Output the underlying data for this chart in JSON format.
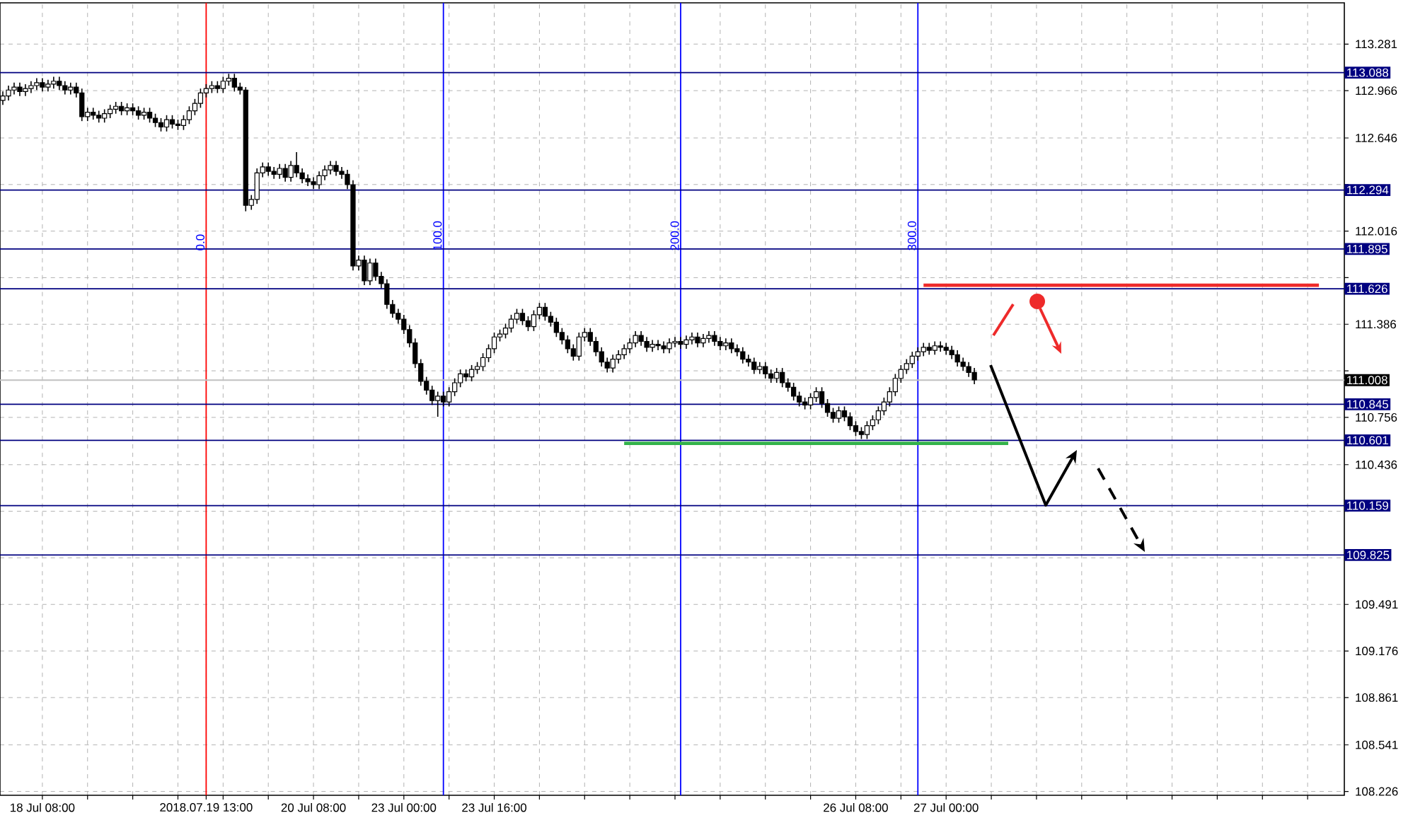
{
  "chart_data": {
    "type": "candlestick",
    "color": "#000000",
    "grid": true,
    "categories": [
      null,
      null,
      null,
      null,
      null,
      null,
      null,
      "18 Jul 08:00",
      null,
      null,
      null,
      null,
      null,
      null,
      null,
      null,
      null,
      null,
      null,
      null,
      null,
      null,
      null,
      null,
      null,
      null,
      null,
      null,
      null,
      null,
      null,
      null,
      null,
      null,
      null,
      null,
      "2018.07.19 13:00",
      null,
      null,
      null,
      null,
      null,
      null,
      null,
      null,
      null,
      null,
      null,
      null,
      null,
      null,
      null,
      null,
      null,
      null,
      "20 Jul 08:00",
      null,
      null,
      null,
      null,
      null,
      null,
      null,
      null,
      null,
      null,
      null,
      null,
      null,
      null,
      null,
      "23 Jul 00:00",
      null,
      null,
      null,
      null,
      null,
      null,
      null,
      null,
      null,
      null,
      null,
      null,
      null,
      null,
      null,
      "23 Jul 16:00",
      null,
      null,
      null,
      null,
      null,
      null,
      null,
      null,
      null,
      null,
      null,
      null,
      null,
      null,
      null,
      null,
      null,
      null,
      null,
      null,
      null,
      null,
      null,
      null,
      null,
      null,
      null,
      null,
      null,
      null,
      null,
      null,
      null,
      null,
      null,
      null,
      null,
      null,
      null,
      null,
      null,
      null,
      null,
      null,
      null,
      null,
      null,
      null,
      null,
      null,
      null,
      null,
      null,
      null,
      null,
      null,
      null,
      null,
      null,
      null,
      null,
      null,
      null,
      "26 Jul 08:00",
      null,
      null,
      null,
      null,
      null,
      null,
      null,
      null,
      null,
      null,
      null,
      null,
      null,
      null,
      null,
      "27 Jul 00:00",
      null,
      null,
      null,
      null,
      null,
      null,
      null,
      null,
      null,
      null,
      null,
      null,
      null,
      null,
      null,
      null,
      null,
      null,
      null,
      null,
      null,
      null,
      null,
      null,
      null,
      null,
      null,
      null,
      null,
      null,
      null,
      null,
      null,
      null,
      null,
      null,
      null,
      null,
      null,
      null,
      null,
      null,
      null,
      null,
      null,
      null,
      null,
      null,
      null,
      null,
      null,
      null,
      null,
      null,
      null,
      null,
      null,
      null,
      null,
      null,
      null,
      null,
      null,
      null,
      null,
      null,
      null,
      null,
      null,
      null
    ],
    "ohlc": [
      [
        112.9,
        112.96,
        112.87,
        112.93
      ],
      [
        112.93,
        113.0,
        112.9,
        112.97
      ],
      [
        112.97,
        113.02,
        112.94,
        112.99
      ],
      [
        112.99,
        113.02,
        112.93,
        112.96
      ],
      [
        112.96,
        113.01,
        112.93,
        112.98
      ],
      [
        112.98,
        113.03,
        112.95,
        113.0
      ],
      [
        113.0,
        113.05,
        112.97,
        113.02
      ],
      [
        113.02,
        113.05,
        112.96,
        112.99
      ],
      [
        112.99,
        113.04,
        112.96,
        113.01
      ],
      [
        113.01,
        113.06,
        112.98,
        113.03
      ],
      [
        113.03,
        113.06,
        112.97,
        113.0
      ],
      [
        113.0,
        113.03,
        112.94,
        112.97
      ],
      [
        112.97,
        113.02,
        112.94,
        112.99
      ],
      [
        112.99,
        113.02,
        112.92,
        112.95
      ],
      [
        112.95,
        112.98,
        112.76,
        112.79
      ],
      [
        112.79,
        112.85,
        112.76,
        112.82
      ],
      [
        112.82,
        112.85,
        112.77,
        112.8
      ],
      [
        112.8,
        112.83,
        112.75,
        112.78
      ],
      [
        112.78,
        112.84,
        112.75,
        112.81
      ],
      [
        112.81,
        112.87,
        112.78,
        112.84
      ],
      [
        112.84,
        112.89,
        112.81,
        112.86
      ],
      [
        112.86,
        112.89,
        112.8,
        112.83
      ],
      [
        112.83,
        112.88,
        112.8,
        112.85
      ],
      [
        112.85,
        112.88,
        112.8,
        112.83
      ],
      [
        112.83,
        112.86,
        112.77,
        112.8
      ],
      [
        112.8,
        112.85,
        112.77,
        112.82
      ],
      [
        112.82,
        112.85,
        112.75,
        112.78
      ],
      [
        112.78,
        112.81,
        112.72,
        112.75
      ],
      [
        112.75,
        112.78,
        112.69,
        112.72
      ],
      [
        112.72,
        112.8,
        112.69,
        112.77
      ],
      [
        112.77,
        112.8,
        112.71,
        112.74
      ],
      [
        112.74,
        112.77,
        112.7,
        112.73
      ],
      [
        112.73,
        112.8,
        112.7,
        112.77
      ],
      [
        112.77,
        112.86,
        112.74,
        112.83
      ],
      [
        112.83,
        112.91,
        112.8,
        112.88
      ],
      [
        112.88,
        112.98,
        112.85,
        112.95
      ],
      [
        112.95,
        113.01,
        112.92,
        112.98
      ],
      [
        112.98,
        113.03,
        112.95,
        113.0
      ],
      [
        113.0,
        113.03,
        112.95,
        112.98
      ],
      [
        112.98,
        113.06,
        112.95,
        113.03
      ],
      [
        113.03,
        113.08,
        113.0,
        113.05
      ],
      [
        113.05,
        113.08,
        112.96,
        112.99
      ],
      [
        112.99,
        113.02,
        112.94,
        112.97
      ],
      [
        112.97,
        112.99,
        112.15,
        112.19
      ],
      [
        112.19,
        112.26,
        112.16,
        112.23
      ],
      [
        112.23,
        112.44,
        112.2,
        112.41
      ],
      [
        112.41,
        112.48,
        112.38,
        112.45
      ],
      [
        112.45,
        112.48,
        112.39,
        112.42
      ],
      [
        112.42,
        112.45,
        112.37,
        112.4
      ],
      [
        112.4,
        112.47,
        112.37,
        112.44
      ],
      [
        112.44,
        112.47,
        112.35,
        112.38
      ],
      [
        112.38,
        112.49,
        112.35,
        112.46
      ],
      [
        112.46,
        112.55,
        112.38,
        112.41
      ],
      [
        112.41,
        112.44,
        112.34,
        112.37
      ],
      [
        112.37,
        112.4,
        112.32,
        112.35
      ],
      [
        112.35,
        112.38,
        112.3,
        112.33
      ],
      [
        112.33,
        112.42,
        112.3,
        112.39
      ],
      [
        112.39,
        112.46,
        112.36,
        112.43
      ],
      [
        112.43,
        112.49,
        112.4,
        112.46
      ],
      [
        112.46,
        112.49,
        112.39,
        112.42
      ],
      [
        112.42,
        112.45,
        112.37,
        112.4
      ],
      [
        112.4,
        112.43,
        112.3,
        112.33
      ],
      [
        112.33,
        112.36,
        111.75,
        111.78
      ],
      [
        111.78,
        111.85,
        111.75,
        111.82
      ],
      [
        111.82,
        111.85,
        111.65,
        111.68
      ],
      [
        111.68,
        111.83,
        111.65,
        111.8
      ],
      [
        111.8,
        111.83,
        111.68,
        111.71
      ],
      [
        111.71,
        111.74,
        111.63,
        111.66
      ],
      [
        111.66,
        111.69,
        111.49,
        111.52
      ],
      [
        111.52,
        111.55,
        111.43,
        111.46
      ],
      [
        111.46,
        111.49,
        111.39,
        111.42
      ],
      [
        111.42,
        111.45,
        111.32,
        111.35
      ],
      [
        111.35,
        111.38,
        111.23,
        111.26
      ],
      [
        111.26,
        111.29,
        111.09,
        111.12
      ],
      [
        111.12,
        111.15,
        110.97,
        111.0
      ],
      [
        111.0,
        111.03,
        110.91,
        110.94
      ],
      [
        110.94,
        110.97,
        110.84,
        110.87
      ],
      [
        110.87,
        110.93,
        110.76,
        110.9
      ],
      [
        110.9,
        110.93,
        110.83,
        110.86
      ],
      [
        110.86,
        110.96,
        110.83,
        110.93
      ],
      [
        110.93,
        111.02,
        110.9,
        110.99
      ],
      [
        110.99,
        111.08,
        110.96,
        111.05
      ],
      [
        111.05,
        111.08,
        111.0,
        111.03
      ],
      [
        111.03,
        111.11,
        111.0,
        111.08
      ],
      [
        111.08,
        111.13,
        111.05,
        111.1
      ],
      [
        111.1,
        111.19,
        111.07,
        111.16
      ],
      [
        111.16,
        111.25,
        111.13,
        111.22
      ],
      [
        111.22,
        111.33,
        111.19,
        111.3
      ],
      [
        111.3,
        111.35,
        111.27,
        111.32
      ],
      [
        111.32,
        111.39,
        111.29,
        111.36
      ],
      [
        111.36,
        111.45,
        111.33,
        111.42
      ],
      [
        111.42,
        111.49,
        111.39,
        111.46
      ],
      [
        111.46,
        111.49,
        111.38,
        111.41
      ],
      [
        111.41,
        111.44,
        111.34,
        111.37
      ],
      [
        111.37,
        111.48,
        111.34,
        111.45
      ],
      [
        111.45,
        111.53,
        111.42,
        111.5
      ],
      [
        111.5,
        111.53,
        111.41,
        111.44
      ],
      [
        111.44,
        111.47,
        111.37,
        111.4
      ],
      [
        111.4,
        111.43,
        111.3,
        111.33
      ],
      [
        111.33,
        111.36,
        111.25,
        111.28
      ],
      [
        111.28,
        111.31,
        111.19,
        111.22
      ],
      [
        111.22,
        111.25,
        111.14,
        111.17
      ],
      [
        111.17,
        111.33,
        111.14,
        111.3
      ],
      [
        111.3,
        111.36,
        111.27,
        111.33
      ],
      [
        111.33,
        111.36,
        111.24,
        111.27
      ],
      [
        111.27,
        111.3,
        111.17,
        111.2
      ],
      [
        111.2,
        111.23,
        111.1,
        111.13
      ],
      [
        111.13,
        111.16,
        111.06,
        111.09
      ],
      [
        111.09,
        111.18,
        111.06,
        111.15
      ],
      [
        111.15,
        111.21,
        111.12,
        111.18
      ],
      [
        111.18,
        111.25,
        111.15,
        111.22
      ],
      [
        111.22,
        111.29,
        111.19,
        111.26
      ],
      [
        111.26,
        111.34,
        111.23,
        111.31
      ],
      [
        111.31,
        111.34,
        111.24,
        111.27
      ],
      [
        111.27,
        111.3,
        111.2,
        111.23
      ],
      [
        111.23,
        111.28,
        111.2,
        111.25
      ],
      [
        111.25,
        111.28,
        111.21,
        111.24
      ],
      [
        111.24,
        111.27,
        111.19,
        111.22
      ],
      [
        111.22,
        111.29,
        111.19,
        111.26
      ],
      [
        111.26,
        111.3,
        111.23,
        111.27
      ],
      [
        111.27,
        111.3,
        111.22,
        111.25
      ],
      [
        111.25,
        111.31,
        111.22,
        111.28
      ],
      [
        111.28,
        111.33,
        111.25,
        111.3
      ],
      [
        111.3,
        111.33,
        111.23,
        111.26
      ],
      [
        111.26,
        111.32,
        111.23,
        111.29
      ],
      [
        111.29,
        111.34,
        111.26,
        111.31
      ],
      [
        111.31,
        111.34,
        111.24,
        111.27
      ],
      [
        111.27,
        111.3,
        111.21,
        111.24
      ],
      [
        111.24,
        111.29,
        111.21,
        111.26
      ],
      [
        111.26,
        111.29,
        111.19,
        111.22
      ],
      [
        111.22,
        111.25,
        111.17,
        111.2
      ],
      [
        111.2,
        111.23,
        111.12,
        111.15
      ],
      [
        111.15,
        111.18,
        111.1,
        111.13
      ],
      [
        111.13,
        111.16,
        111.05,
        111.08
      ],
      [
        111.08,
        111.13,
        111.05,
        111.1
      ],
      [
        111.1,
        111.13,
        111.02,
        111.05
      ],
      [
        111.05,
        111.08,
        110.99,
        111.02
      ],
      [
        111.02,
        111.09,
        110.99,
        111.06
      ],
      [
        111.06,
        111.09,
        110.96,
        110.99
      ],
      [
        110.99,
        111.02,
        110.93,
        110.96
      ],
      [
        110.96,
        110.99,
        110.87,
        110.9
      ],
      [
        110.9,
        110.93,
        110.83,
        110.86
      ],
      [
        110.86,
        110.89,
        110.81,
        110.84
      ],
      [
        110.84,
        110.92,
        110.81,
        110.89
      ],
      [
        110.89,
        110.96,
        110.86,
        110.93
      ],
      [
        110.93,
        110.96,
        110.82,
        110.85
      ],
      [
        110.85,
        110.88,
        110.76,
        110.79
      ],
      [
        110.79,
        110.82,
        110.72,
        110.75
      ],
      [
        110.75,
        110.83,
        110.72,
        110.8
      ],
      [
        110.8,
        110.83,
        110.73,
        110.76
      ],
      [
        110.76,
        110.79,
        110.67,
        110.7
      ],
      [
        110.7,
        110.73,
        110.63,
        110.66
      ],
      [
        110.66,
        110.69,
        110.61,
        110.64
      ],
      [
        110.64,
        110.73,
        110.61,
        110.7
      ],
      [
        110.7,
        110.77,
        110.67,
        110.74
      ],
      [
        110.74,
        110.83,
        110.71,
        110.8
      ],
      [
        110.8,
        110.89,
        110.77,
        110.86
      ],
      [
        110.86,
        110.96,
        110.83,
        110.93
      ],
      [
        110.93,
        111.05,
        110.9,
        111.02
      ],
      [
        111.02,
        111.11,
        110.99,
        111.08
      ],
      [
        111.08,
        111.15,
        111.05,
        111.12
      ],
      [
        111.12,
        111.2,
        111.09,
        111.17
      ],
      [
        111.17,
        111.23,
        111.14,
        111.2
      ],
      [
        111.2,
        111.26,
        111.17,
        111.23
      ],
      [
        111.23,
        111.26,
        111.18,
        111.21
      ],
      [
        111.21,
        111.27,
        111.18,
        111.24
      ],
      [
        111.24,
        111.27,
        111.2,
        111.23
      ],
      [
        111.23,
        111.26,
        111.18,
        111.21
      ],
      [
        111.21,
        111.24,
        111.15,
        111.18
      ],
      [
        111.18,
        111.21,
        111.1,
        111.13
      ],
      [
        111.13,
        111.16,
        111.07,
        111.1
      ],
      [
        111.1,
        111.13,
        111.03,
        111.06
      ],
      [
        111.06,
        111.09,
        110.98,
        111.01
      ],
      null,
      null,
      null,
      null,
      null,
      null,
      null,
      null,
      null,
      null,
      null,
      null,
      null,
      null,
      null,
      null,
      null,
      null,
      null,
      null,
      null,
      null,
      null,
      null,
      null,
      null,
      null,
      null,
      null,
      null,
      null,
      null,
      null,
      null,
      null,
      null,
      null,
      null,
      null,
      null,
      null,
      null,
      null,
      null,
      null,
      null,
      null,
      null,
      null,
      null,
      null,
      null,
      null,
      null,
      null,
      null,
      null,
      null,
      null,
      null,
      null,
      null,
      null,
      null,
      null
    ],
    "series": [
      {
        "type": "line",
        "color": "#ee2a2a",
        "values": [
          null,
          null,
          null,
          null,
          null,
          null,
          null,
          null,
          null,
          null,
          null,
          null,
          null,
          null,
          null,
          null,
          null,
          null,
          null,
          null,
          null,
          null,
          null,
          null,
          null,
          null,
          null,
          null,
          null,
          null,
          null,
          null,
          null,
          null,
          null,
          null,
          null,
          null,
          null,
          null,
          null,
          null,
          null,
          null,
          null,
          null,
          null,
          null,
          null,
          null,
          null,
          null,
          null,
          null,
          null,
          null,
          null,
          null,
          null,
          null,
          null,
          null,
          null,
          null,
          null,
          null,
          null,
          null,
          null,
          null,
          null,
          null,
          null,
          null,
          null,
          null,
          null,
          null,
          null,
          null,
          null,
          null,
          null,
          null,
          null,
          null,
          null,
          null,
          null,
          null,
          null,
          null,
          null,
          null,
          null,
          null,
          null,
          null,
          null,
          null,
          null,
          null,
          null,
          null,
          null,
          null,
          null,
          null,
          null,
          null,
          null,
          null,
          null,
          null,
          null,
          null,
          null,
          null,
          null,
          null,
          null,
          null,
          null,
          null,
          null,
          null,
          null,
          null,
          null,
          null,
          null,
          null,
          null,
          null,
          null,
          null,
          null,
          null,
          null,
          null,
          null,
          null,
          null,
          null,
          null,
          null,
          null,
          null,
          null,
          null,
          null,
          null,
          null,
          null,
          null,
          null,
          null,
          null,
          null,
          null,
          null,
          null,
          null,
          111.65,
          111.65,
          111.65,
          111.65,
          111.65,
          111.65,
          111.65,
          111.65,
          111.65,
          111.65,
          111.65,
          111.65,
          111.65,
          111.65,
          111.65,
          111.65,
          111.65,
          111.65,
          111.65,
          111.65,
          111.65,
          111.65,
          111.65,
          111.65,
          111.65,
          111.65,
          111.65,
          111.65,
          111.65,
          111.65,
          111.65,
          111.65,
          111.65,
          111.65,
          111.65,
          111.65,
          111.65,
          111.65,
          111.65,
          111.65,
          111.65,
          111.65,
          111.65,
          111.65,
          111.65,
          111.65,
          111.65,
          111.65,
          111.65,
          111.65,
          111.65,
          111.65,
          111.65,
          111.65,
          111.65,
          111.65,
          111.65,
          111.65,
          111.65,
          111.65,
          111.65,
          111.65,
          111.65,
          111.65,
          111.65,
          111.65,
          111.65,
          111.65,
          111.65,
          111.65,
          111.65,
          null,
          null,
          null,
          null
        ]
      },
      {
        "type": "line",
        "color": "#33b34a",
        "values": [
          null,
          null,
          null,
          null,
          null,
          null,
          null,
          null,
          null,
          null,
          null,
          null,
          null,
          null,
          null,
          null,
          null,
          null,
          null,
          null,
          null,
          null,
          null,
          null,
          null,
          null,
          null,
          null,
          null,
          null,
          null,
          null,
          null,
          null,
          null,
          null,
          null,
          null,
          null,
          null,
          null,
          null,
          null,
          null,
          null,
          null,
          null,
          null,
          null,
          null,
          null,
          null,
          null,
          null,
          null,
          null,
          null,
          null,
          null,
          null,
          null,
          null,
          null,
          null,
          null,
          null,
          null,
          null,
          null,
          null,
          null,
          null,
          null,
          null,
          null,
          null,
          null,
          null,
          null,
          null,
          null,
          null,
          null,
          null,
          null,
          null,
          null,
          null,
          null,
          null,
          null,
          null,
          null,
          null,
          null,
          null,
          null,
          null,
          null,
          null,
          null,
          null,
          null,
          null,
          null,
          null,
          null,
          null,
          null,
          null,
          110.58,
          110.58,
          110.58,
          110.58,
          110.58,
          110.58,
          110.58,
          110.58,
          110.58,
          110.58,
          110.58,
          110.58,
          110.58,
          110.58,
          110.58,
          110.58,
          110.58,
          110.58,
          110.58,
          110.58,
          110.58,
          110.58,
          110.58,
          110.58,
          110.58,
          110.58,
          110.58,
          110.58,
          110.58,
          110.58,
          110.58,
          110.58,
          110.58,
          110.58,
          110.58,
          110.58,
          110.58,
          110.58,
          110.58,
          110.58,
          110.58,
          110.58,
          110.58,
          110.58,
          110.58,
          110.58,
          110.58,
          110.58,
          110.58,
          110.58,
          110.58,
          110.58,
          110.58,
          110.58,
          110.58,
          110.58,
          110.58,
          110.58,
          110.58,
          110.58,
          110.58,
          110.58,
          110.58,
          110.58,
          110.58,
          110.58,
          110.58,
          110.58,
          110.58,
          null,
          null,
          null,
          null,
          null,
          null,
          null,
          null,
          null,
          null,
          null,
          null,
          null,
          null,
          null,
          null,
          null,
          null,
          null,
          null,
          null,
          null,
          null,
          null,
          null,
          null,
          null,
          null,
          null,
          null,
          null,
          null,
          null,
          null,
          null,
          null,
          null,
          null,
          null,
          null,
          null,
          null,
          null,
          null,
          null,
          null,
          null,
          null,
          null,
          null,
          null,
          null,
          null,
          null,
          null,
          null,
          null,
          null,
          null
        ]
      }
    ],
    "annotations": [
      "0.0",
      "100.0",
      "200.0",
      "300.0"
    ],
    "ylim": [
      108.2,
      113.56
    ],
    "yticks": [
      {
        "value": 113.281,
        "label": "113.281"
      },
      {
        "value": 112.966,
        "label": "112.966"
      },
      {
        "value": 112.646,
        "label": "112.646"
      },
      {
        "value": 112.331,
        "label": null
      },
      {
        "value": 112.016,
        "label": "112.016"
      },
      {
        "value": 111.701,
        "label": null
      },
      {
        "value": 111.386,
        "label": "111.386"
      },
      {
        "value": 111.071,
        "label": null
      },
      {
        "value": 110.756,
        "label": "110.756"
      },
      {
        "value": 110.436,
        "label": "110.436"
      },
      {
        "value": 110.121,
        "label": null
      },
      {
        "value": 109.806,
        "label": null
      },
      {
        "value": 109.491,
        "label": "109.491"
      },
      {
        "value": 109.176,
        "label": "109.176"
      },
      {
        "value": 108.861,
        "label": "108.861"
      },
      {
        "value": 108.541,
        "label": "108.541"
      },
      {
        "value": 108.226,
        "label": "108.226"
      }
    ],
    "ref_lines": [
      {
        "axis": "y",
        "value": 113.088,
        "label": "113.088",
        "color": "#000080"
      },
      {
        "axis": "y",
        "value": 112.294,
        "label": "112.294",
        "color": "#000080"
      },
      {
        "axis": "y",
        "value": 111.895,
        "label": "111.895",
        "color": "#000080"
      },
      {
        "axis": "y",
        "value": 111.626,
        "label": "111.626",
        "color": "#000080"
      },
      {
        "axis": "y",
        "value": 111.008,
        "label": "111.008",
        "color": "#c0c0c0"
      },
      {
        "axis": "y",
        "value": 110.845,
        "label": "110.845",
        "color": "#000080"
      },
      {
        "axis": "y",
        "value": 110.601,
        "label": "110.601",
        "color": "#000080"
      },
      {
        "axis": "y",
        "value": 110.159,
        "label": "110.159",
        "color": "#000080"
      },
      {
        "axis": "y",
        "value": 109.825,
        "label": "109.825",
        "color": "#000080"
      }
    ]
  }
}
